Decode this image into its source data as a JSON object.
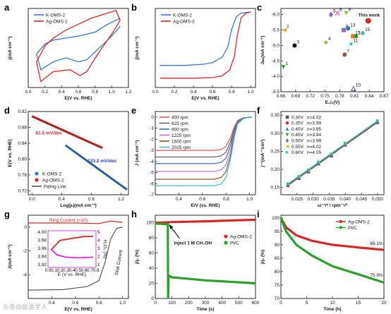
{
  "figure": {
    "watermark": "头条@能源学人"
  },
  "chart_data": [
    {
      "panel": "a",
      "type": "line",
      "xlabel": "E(V vs. RHE)",
      "ylabel": "j(mA cm⁻²)",
      "xlim": [
        0.0,
        1.2
      ],
      "ylim": [
        -1.0,
        1.0
      ],
      "xticks": [
        "0.0",
        "0.2",
        "0.4",
        "0.6",
        "0.8",
        "1.0",
        "1.2"
      ],
      "series": [
        {
          "name": "K-OMS-2",
          "color": "#3a78c4",
          "upper": [
            [
              0.1,
              -0.15
            ],
            [
              0.2,
              0.1
            ],
            [
              0.3,
              0.2
            ],
            [
              0.45,
              0.25
            ],
            [
              0.6,
              0.3
            ],
            [
              0.8,
              0.4
            ],
            [
              0.95,
              0.6
            ],
            [
              1.1,
              0.75
            ]
          ],
          "lower": [
            [
              1.1,
              0.55
            ],
            [
              1.0,
              0.3
            ],
            [
              0.85,
              0.0
            ],
            [
              0.7,
              -0.3
            ],
            [
              0.6,
              -0.35
            ],
            [
              0.45,
              -0.25
            ],
            [
              0.3,
              -0.35
            ],
            [
              0.15,
              -0.55
            ],
            [
              0.1,
              -0.15
            ]
          ]
        },
        {
          "name": "Ag-OMS-2",
          "color": "#d62728",
          "upper": [
            [
              0.1,
              -0.35
            ],
            [
              0.2,
              0.05
            ],
            [
              0.3,
              0.25
            ],
            [
              0.45,
              0.45
            ],
            [
              0.6,
              0.6
            ],
            [
              0.75,
              0.75
            ],
            [
              0.9,
              0.85
            ],
            [
              1.05,
              0.95
            ],
            [
              1.1,
              0.7
            ]
          ],
          "lower": [
            [
              1.1,
              0.7
            ],
            [
              1.0,
              0.35
            ],
            [
              0.85,
              -0.1
            ],
            [
              0.7,
              -0.6
            ],
            [
              0.62,
              -0.7
            ],
            [
              0.5,
              -0.55
            ],
            [
              0.3,
              -0.6
            ],
            [
              0.15,
              -0.85
            ],
            [
              0.1,
              -0.35
            ]
          ]
        }
      ]
    },
    {
      "panel": "b",
      "type": "line",
      "xlabel": "E(V vs. RHE)",
      "ylabel": "j(mA cm⁻²)",
      "xlim": [
        0.0,
        1.05
      ],
      "ylim": [
        -6.5,
        0.3
      ],
      "xticks": [
        "0.0",
        "0.2",
        "0.4",
        "0.6",
        "0.8",
        "1.0"
      ],
      "series": [
        {
          "name": "K-OMS-2",
          "color": "#3a78c4",
          "points": [
            [
              0.05,
              -4.6
            ],
            [
              0.3,
              -4.6
            ],
            [
              0.5,
              -4.5
            ],
            [
              0.6,
              -4.35
            ],
            [
              0.7,
              -3.9
            ],
            [
              0.76,
              -3.0
            ],
            [
              0.8,
              -1.5
            ],
            [
              0.85,
              -0.4
            ],
            [
              0.9,
              -0.1
            ],
            [
              1.0,
              0.0
            ]
          ]
        },
        {
          "name": "Ag-OMS-2",
          "color": "#d62728",
          "points": [
            [
              0.05,
              -5.7
            ],
            [
              0.4,
              -5.7
            ],
            [
              0.6,
              -5.65
            ],
            [
              0.7,
              -5.5
            ],
            [
              0.78,
              -5.0
            ],
            [
              0.83,
              -3.8
            ],
            [
              0.86,
              -2.0
            ],
            [
              0.9,
              -0.5
            ],
            [
              0.95,
              -0.1
            ],
            [
              1.0,
              0.0
            ]
          ]
        }
      ]
    },
    {
      "panel": "c",
      "type": "scatter",
      "xlabel": "E₁/₂(V)",
      "ylabel": "Jₗᵢₘ(mA cm⁻²)",
      "xlim": [
        0.66,
        0.87
      ],
      "ylim": [
        -3.5,
        -6.2
      ],
      "xticks": [
        "0.66",
        "0.69",
        "0.72",
        "0.75",
        "0.78",
        "0.81",
        "0.84",
        "0.87"
      ],
      "yticks": [
        "-3.5",
        "-4.0",
        "-4.5",
        "-5.0",
        "-5.5",
        "-6.0"
      ],
      "points": [
        {
          "label": "1",
          "x": 0.665,
          "y": -4.3,
          "color": "#2ca02c",
          "marker": "tri-down"
        },
        {
          "label": "2",
          "x": 0.667,
          "y": -5.5,
          "color": "#f0a020",
          "marker": "tri-left"
        },
        {
          "label": "3",
          "x": 0.688,
          "y": -5.0,
          "color": "#111111",
          "marker": "circle"
        },
        {
          "label": "4",
          "x": 0.752,
          "y": -5.1,
          "color": "#a0a020",
          "marker": "star"
        },
        {
          "label": "5",
          "x": 0.762,
          "y": -6.0,
          "color": "#8a5ad8",
          "marker": "diamond"
        },
        {
          "label": "6",
          "x": 0.775,
          "y": -6.05,
          "color": "#e377c2",
          "marker": "x"
        },
        {
          "label": "7",
          "x": 0.79,
          "y": -4.7,
          "color": "#8c564b",
          "marker": "circle"
        },
        {
          "label": "8",
          "x": 0.788,
          "y": -5.5,
          "color": "#9467bd",
          "marker": "square"
        },
        {
          "label": "9",
          "x": 0.793,
          "y": -6.05,
          "color": "#8bc34a",
          "marker": "tri-down"
        },
        {
          "label": "10",
          "x": 0.808,
          "y": -3.6,
          "color": "#6a3fa0",
          "marker": "tri-up-open"
        },
        {
          "label": "11",
          "x": 0.803,
          "y": -5.05,
          "color": "#17becf",
          "marker": "star"
        },
        {
          "label": "12",
          "x": 0.807,
          "y": -5.3,
          "color": "#ff7f0e",
          "marker": "square"
        },
        {
          "label": "13",
          "x": 0.797,
          "y": -5.55,
          "color": "#1f77b4",
          "marker": "circle"
        },
        {
          "label": "14",
          "x": 0.813,
          "y": -5.3,
          "color": "#2ca02c",
          "marker": "circle"
        },
        {
          "label": "15",
          "x": 0.827,
          "y": -5.4,
          "color": "#6baed6",
          "marker": "circle"
        },
        {
          "label": "This work",
          "x": 0.838,
          "y": -5.8,
          "color": "#d62728",
          "marker": "circle"
        }
      ]
    },
    {
      "panel": "d",
      "type": "line",
      "xlabel": "Log|jₖ|(mA cm⁻²)",
      "ylabel": "E(V vs. RHE)",
      "xlim": [
        -0.05,
        1.3
      ],
      "ylim": [
        0.71,
        0.92
      ],
      "xticks": [
        "0.0",
        "0.4",
        "0.8",
        "1.2"
      ],
      "yticks": [
        "0.72",
        "0.76",
        "0.80",
        "0.84",
        "0.88",
        "0.92"
      ],
      "annotations": [
        {
          "text": "81.5 mV/dec",
          "color": "#d62728"
        },
        {
          "text": "133.2 mV/dec",
          "color": "#1f3fb0"
        }
      ],
      "series": [
        {
          "name": "K-OMS-2",
          "color": "#3a78c4",
          "points": [
            [
              0.45,
              0.835
            ],
            [
              1.28,
              0.723
            ]
          ]
        },
        {
          "name": "Ag-OMS-2",
          "color": "#d62728",
          "points": [
            [
              0.0,
              0.908
            ],
            [
              0.95,
              0.828
            ]
          ]
        },
        {
          "name": "Fitting Line",
          "color": "#555555"
        }
      ]
    },
    {
      "panel": "e",
      "type": "line",
      "xlabel": "E/V (vs. RHE)",
      "ylabel": "J (mA cm⁻²)",
      "xlim": [
        0.2,
        1.05
      ],
      "ylim": [
        -7.0,
        0.5
      ],
      "xticks": [
        "0.4",
        "0.6",
        "0.8",
        "1.0"
      ],
      "yticks": [
        "0",
        "-1",
        "-2",
        "-3",
        "-4",
        "-5",
        "-6",
        "-7"
      ],
      "series": [
        {
          "name": "400 rpm",
          "color": "#e05a5a",
          "plateau": -3.0
        },
        {
          "name": "625 rpm",
          "color": "#666666",
          "plateau": -3.6
        },
        {
          "name": "900 rpm",
          "color": "#3a6fc0",
          "plateau": -4.2
        },
        {
          "name": "1225 rpm",
          "color": "#c070d0",
          "plateau": -4.9
        },
        {
          "name": "1600 rpm",
          "color": "#8b5a2b",
          "plateau": -5.6
        },
        {
          "name": "2025 rpm",
          "color": "#40c0c8",
          "plateau": -6.2
        }
      ]
    },
    {
      "panel": "f",
      "type": "scatter",
      "xlabel": "ω⁻¹/² / rpm⁻¹/²",
      "ylabel": "j⁻¹(mA⁻¹cm²)",
      "xlim": [
        0.02,
        0.052
      ],
      "ylim": [
        0.13,
        0.36
      ],
      "xticks": [
        "0.025",
        "0.030",
        "0.035",
        "0.040",
        "0.045",
        "0.050"
      ],
      "yticks": [
        "0.15",
        "0.20",
        "0.25",
        "0.30",
        "0.35"
      ],
      "x": [
        0.0222,
        0.0256,
        0.0286,
        0.0317,
        0.0357,
        0.04,
        0.05
      ],
      "y": [
        0.158,
        0.178,
        0.196,
        0.218,
        0.24,
        0.27,
        0.332
      ],
      "legend": [
        {
          "label": "0.30V",
          "n": "n=4.02",
          "color": "#555555",
          "marker": "square"
        },
        {
          "label": "0.35V",
          "n": "n=3.99",
          "color": "#d62728",
          "marker": "circle"
        },
        {
          "label": "0.40V",
          "n": "n=3.95",
          "color": "#3a6fc0",
          "marker": "tri-up"
        },
        {
          "label": "0.45V",
          "n": "n=3.94",
          "color": "#2ca02c",
          "marker": "tri-down"
        },
        {
          "label": "0.50V",
          "n": "n=3.99",
          "color": "#9467bd",
          "marker": "diamond"
        },
        {
          "label": "0.55V",
          "n": "n=4.02",
          "color": "#bcbd22",
          "marker": "tri-left"
        },
        {
          "label": "0.60V",
          "n": "n=4.05",
          "color": "#17becf",
          "marker": "tri-right"
        }
      ]
    },
    {
      "panel": "g",
      "type": "line",
      "xlabel": "E(V vs. RHE)",
      "ylabel": "J(mA cm⁻²)",
      "xlim": [
        0.2,
        1.05
      ],
      "ylim": [
        -6.0,
        1.0
      ],
      "xticks": [
        "0.4",
        "0.6",
        "0.8",
        "1.0"
      ],
      "yticks": [
        "0",
        "-2",
        "-4"
      ],
      "labels": {
        "ring": "Ring Current (×10)",
        "disk": "Disk Current"
      },
      "ring": [
        [
          0.2,
          0.35
        ],
        [
          0.6,
          0.35
        ],
        [
          0.8,
          0.3
        ],
        [
          0.9,
          0.5
        ],
        [
          1.0,
          0.4
        ]
      ],
      "disk": [
        [
          0.2,
          -5.3
        ],
        [
          0.5,
          -5.25
        ],
        [
          0.7,
          -5.0
        ],
        [
          0.8,
          -4.5
        ],
        [
          0.85,
          -3.0
        ],
        [
          0.9,
          -1.0
        ],
        [
          0.95,
          -0.1
        ],
        [
          1.0,
          0.0
        ]
      ],
      "inset": {
        "xlabel": "E (V vs. RHE)",
        "y1ticks": [
          "4.00",
          "3.98",
          "3.96",
          "3.94",
          "3.92"
        ],
        "y2label": "H₂O₂ (%)",
        "y2ticks": [
          "5",
          "4",
          "3",
          "2",
          "1"
        ],
        "xticks": [
          "0.0",
          "0.1",
          "0.2",
          "0.3",
          "0.4",
          "0.5",
          "0.6",
          "0.7",
          "0.8"
        ],
        "n_curve": [
          [
            0.05,
            3.955
          ],
          [
            0.2,
            3.98
          ],
          [
            0.4,
            3.985
          ],
          [
            0.6,
            3.99
          ],
          [
            0.75,
            3.99
          ]
        ],
        "h2o2_curve": [
          [
            0.05,
            3.0
          ],
          [
            0.15,
            2.2
          ],
          [
            0.3,
            1.9
          ],
          [
            0.5,
            1.8
          ],
          [
            0.75,
            1.9
          ]
        ]
      }
    },
    {
      "panel": "h",
      "type": "line",
      "xlabel": "Time (s)",
      "ylabel": "j/j₀ (%)",
      "xlim": [
        0,
        600
      ],
      "ylim": [
        0,
        110
      ],
      "xticks": [
        "0",
        "100",
        "200",
        "300",
        "400",
        "500",
        "600"
      ],
      "yticks": [
        "0",
        "20",
        "40",
        "60",
        "80",
        "100"
      ],
      "annotation": "Inject 1 M CH₃OH",
      "series": [
        {
          "name": "Ag-OMS-2",
          "color": "#d62728",
          "points": [
            [
              0,
              100
            ],
            [
              100,
              101
            ],
            [
              300,
              102
            ],
            [
              600,
              104
            ]
          ]
        },
        {
          "name": "Pt/C",
          "color": "#2ca02c",
          "points": [
            [
              0,
              99
            ],
            [
              75,
              98
            ],
            [
              77,
              0
            ],
            [
              80,
              30
            ],
            [
              100,
              28
            ],
            [
              300,
              24
            ],
            [
              600,
              20
            ]
          ]
        }
      ]
    },
    {
      "panel": "i",
      "type": "line",
      "xlabel": "Time (h)",
      "ylabel": "j/j₀ (%)",
      "xlim": [
        0,
        20
      ],
      "ylim": [
        70,
        101
      ],
      "xticks": [
        "0",
        "5",
        "10",
        "15",
        "20"
      ],
      "yticks": [
        "70",
        "75",
        "80",
        "85",
        "90",
        "95",
        "100"
      ],
      "annotations": [
        {
          "text": "88.1%",
          "color": "#111111"
        },
        {
          "text": "75.9%",
          "color": "#111111"
        }
      ],
      "series": [
        {
          "name": "Ag-OMS-2",
          "color": "#d62728",
          "points": [
            [
              0,
              100
            ],
            [
              1,
              96.5
            ],
            [
              3,
              93.5
            ],
            [
              6,
              91.5
            ],
            [
              10,
              90.0
            ],
            [
              15,
              89.0
            ],
            [
              20,
              88.1
            ]
          ]
        },
        {
          "name": "Pt/C",
          "color": "#2ca02c",
          "points": [
            [
              0,
              100
            ],
            [
              1,
              95
            ],
            [
              3,
              90
            ],
            [
              6,
              86
            ],
            [
              10,
              82
            ],
            [
              15,
              79
            ],
            [
              20,
              75.9
            ]
          ]
        }
      ]
    }
  ]
}
